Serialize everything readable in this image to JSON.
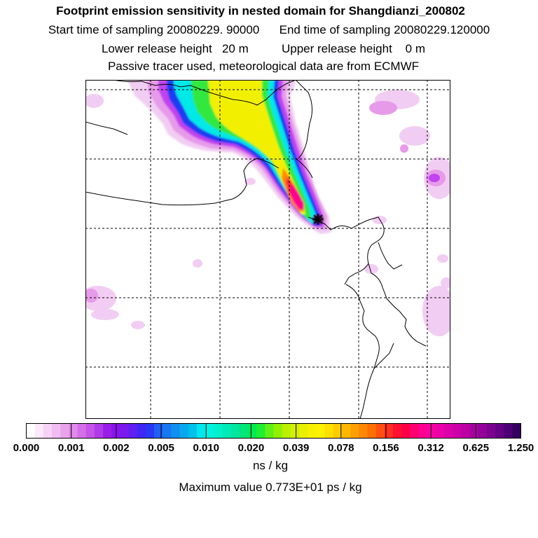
{
  "title": {
    "line1": "Footprint emission sensitivity in nested domain for Shangdianzi_200802",
    "line2": "Start time of sampling 20080229. 90000      End time of sampling 20080229.120000",
    "line3": "Lower release height   20 m          Upper release height    0 m",
    "line4": "Passive tracer used, meteorological data are from ECMWF"
  },
  "colorbar": {
    "tick_labels": [
      "0.000",
      "0.001",
      "0.002",
      "0.005",
      "0.010",
      "0.020",
      "0.039",
      "0.078",
      "0.156",
      "0.312",
      "0.625",
      "1.250"
    ],
    "colors": [
      "#ffffff",
      "#fbe8fb",
      "#f6d2f7",
      "#f0bcf2",
      "#e9a3ec",
      "#e08aea",
      "#d46fe9",
      "#c654e8",
      "#b03be8",
      "#9a1ee8",
      "#8a14ee",
      "#7a1af0",
      "#6020f2",
      "#4028f4",
      "#2838f4",
      "#2060f4",
      "#1878f2",
      "#1090f0",
      "#08a8ee",
      "#00c0ec",
      "#00e8ee",
      "#00f2e0",
      "#00f0cc",
      "#00eab6",
      "#00e6a0",
      "#00e67a",
      "#00ea54",
      "#20ee30",
      "#60f018",
      "#90f000",
      "#b8f000",
      "#d4f000",
      "#e8f000",
      "#f8f000",
      "#fff000",
      "#ffe000",
      "#ffcc00",
      "#ffb800",
      "#ffa000",
      "#ff8800",
      "#ff7000",
      "#ff5010",
      "#ff3020",
      "#ff1030",
      "#ff0048",
      "#ff0070",
      "#ff0090",
      "#f800a0",
      "#ec00a8",
      "#dc00a8",
      "#cc00a8",
      "#bc00a4",
      "#a800a0",
      "#94009a",
      "#7c0090",
      "#640084",
      "#4c0074",
      "#340060"
    ]
  },
  "unit_label": "ns / kg",
  "max_value_label": "Maximum value  0.773E+01 ps / kg",
  "map": {
    "receptor_marker": "cross-marker",
    "palette": {
      "faint": "#f2cdf3",
      "light": "#e79ae9",
      "violet": "#c042f0",
      "blue": "#1e3cf2",
      "cyan": "#00e8e8",
      "green": "#30e840",
      "yellow": "#f2f000",
      "orange": "#ff8a00",
      "red": "#ff2040",
      "magenta": "#ff0090",
      "dark": "#40004e"
    }
  }
}
